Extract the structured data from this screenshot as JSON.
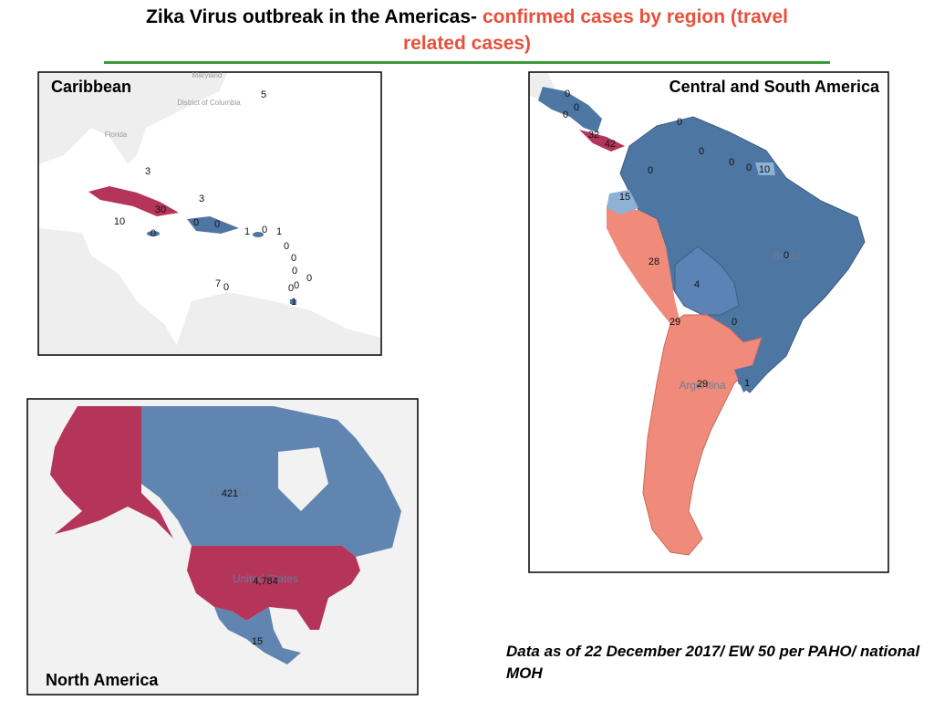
{
  "title": {
    "main": "Zika Virus outbreak in the Americas-",
    "highlight": "confirmed cases by region (travel related cases)"
  },
  "caribbean": {
    "title": "Caribbean",
    "place_labels": [
      "Maryland",
      "District of Columbia",
      "Florida"
    ],
    "case_labels": [
      5,
      3,
      3,
      30,
      10,
      0,
      0,
      0,
      1,
      0,
      1,
      0,
      0,
      0,
      0,
      0,
      7,
      0,
      0,
      1
    ]
  },
  "central_south_america": {
    "title": "Central and South America",
    "place_labels": [
      "Brazil",
      "Argentina"
    ],
    "case_labels": [
      0,
      0,
      0,
      32,
      42,
      0,
      0,
      0,
      0,
      0,
      10,
      15,
      28,
      4,
      0,
      29,
      0,
      29,
      1
    ]
  },
  "north_america": {
    "title": "North America",
    "place_labels": [
      "Canada",
      "United States"
    ],
    "case_labels": [
      421,
      {
        "value": 4784,
        "label": "4,784"
      },
      15
    ]
  },
  "footnote": "Data as of 22 December 2017/ EW 50 per PAHO/ national MOH"
}
